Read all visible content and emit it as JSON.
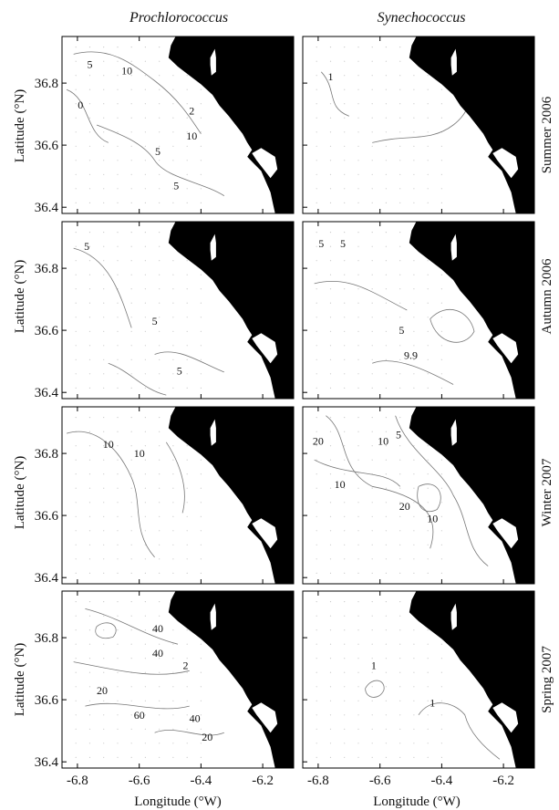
{
  "chart_data": {
    "type": "contour-map-grid",
    "columns": [
      "Prochlorococcus",
      "Synechococcus"
    ],
    "rows": [
      "Summer 2006",
      "Autumn 2006",
      "Winter 2007",
      "Spring 2007"
    ],
    "xlabel": "Longitude (°W)",
    "ylabel": "Latitude (°N)",
    "xlim": [
      -6.85,
      -6.1
    ],
    "ylim": [
      36.38,
      36.95
    ],
    "xticks": [
      -6.8,
      -6.6,
      -6.4,
      -6.2
    ],
    "xtick_labels": [
      "-6.8",
      "-6.6",
      "-6.4",
      "-6.2"
    ],
    "yticks": [
      36.4,
      36.6,
      36.8
    ],
    "ytick_labels": [
      "36.4",
      "36.6",
      "36.8"
    ],
    "land_color": "#000000",
    "contour_color": "#777777",
    "panels": [
      {
        "row": "Summer 2006",
        "column": "Prochlorococcus",
        "contour_labels": [
          {
            "text": "5",
            "lon": -6.76,
            "lat": 36.86
          },
          {
            "text": "10",
            "lon": -6.64,
            "lat": 36.84
          },
          {
            "text": "0",
            "lon": -6.79,
            "lat": 36.73
          },
          {
            "text": "2",
            "lon": -6.43,
            "lat": 36.71
          },
          {
            "text": "10",
            "lon": -6.43,
            "lat": 36.63
          },
          {
            "text": "5",
            "lon": -6.54,
            "lat": 36.58
          },
          {
            "text": "5",
            "lon": -6.48,
            "lat": 36.47
          }
        ]
      },
      {
        "row": "Summer 2006",
        "column": "Synechococcus",
        "contour_labels": [
          {
            "text": "1",
            "lon": -6.76,
            "lat": 36.82
          }
        ]
      },
      {
        "row": "Autumn 2006",
        "column": "Prochlorococcus",
        "contour_labels": [
          {
            "text": "5",
            "lon": -6.77,
            "lat": 36.87
          },
          {
            "text": "5",
            "lon": -6.55,
            "lat": 36.63
          },
          {
            "text": "5",
            "lon": -6.47,
            "lat": 36.47
          }
        ]
      },
      {
        "row": "Autumn 2006",
        "column": "Synechococcus",
        "contour_labels": [
          {
            "text": "5",
            "lon": -6.79,
            "lat": 36.88
          },
          {
            "text": "5",
            "lon": -6.72,
            "lat": 36.88
          },
          {
            "text": "5",
            "lon": -6.53,
            "lat": 36.6
          },
          {
            "text": "9.9",
            "lon": -6.5,
            "lat": 36.52
          }
        ]
      },
      {
        "row": "Winter 2007",
        "column": "Prochlorococcus",
        "contour_labels": [
          {
            "text": "10",
            "lon": -6.7,
            "lat": 36.83
          },
          {
            "text": "10",
            "lon": -6.6,
            "lat": 36.8
          }
        ]
      },
      {
        "row": "Winter 2007",
        "column": "Synechococcus",
        "contour_labels": [
          {
            "text": "20",
            "lon": -6.8,
            "lat": 36.84
          },
          {
            "text": "10",
            "lon": -6.59,
            "lat": 36.84
          },
          {
            "text": "5",
            "lon": -6.54,
            "lat": 36.86
          },
          {
            "text": "10",
            "lon": -6.73,
            "lat": 36.7
          },
          {
            "text": "20",
            "lon": -6.52,
            "lat": 36.63
          },
          {
            "text": "10",
            "lon": -6.43,
            "lat": 36.59
          }
        ]
      },
      {
        "row": "Spring 2007",
        "column": "Prochlorococcus",
        "contour_labels": [
          {
            "text": "40",
            "lon": -6.54,
            "lat": 36.83
          },
          {
            "text": "40",
            "lon": -6.54,
            "lat": 36.75
          },
          {
            "text": "2",
            "lon": -6.45,
            "lat": 36.71
          },
          {
            "text": "20",
            "lon": -6.72,
            "lat": 36.63
          },
          {
            "text": "60",
            "lon": -6.6,
            "lat": 36.55
          },
          {
            "text": "40",
            "lon": -6.42,
            "lat": 36.54
          },
          {
            "text": "20",
            "lon": -6.38,
            "lat": 36.48
          }
        ]
      },
      {
        "row": "Spring 2007",
        "column": "Synechococcus",
        "contour_labels": [
          {
            "text": "1",
            "lon": -6.62,
            "lat": 36.71
          },
          {
            "text": "1",
            "lon": -6.43,
            "lat": 36.59
          }
        ]
      }
    ]
  }
}
